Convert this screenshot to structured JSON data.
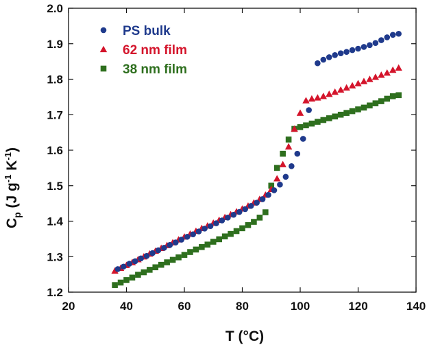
{
  "chart_data": {
    "type": "scatter",
    "xlabel": "T (°C)",
    "ylabel": {
      "main": "C",
      "sub": "p",
      "units_pre": " (J g",
      "exp1": "-1",
      "units_mid": " K",
      "exp2": "-1",
      "units_post": ")"
    },
    "xlim": [
      20,
      140
    ],
    "ylim": [
      1.2,
      2.0
    ],
    "xticks": [
      20,
      40,
      60,
      80,
      100,
      120,
      140
    ],
    "yticks": [
      1.2,
      1.3,
      1.4,
      1.5,
      1.6,
      1.7,
      1.8,
      1.9,
      2.0
    ],
    "ytick_labels": [
      "1.2",
      "1.3",
      "1.4",
      "1.5",
      "1.6",
      "1.7",
      "1.8",
      "1.9",
      "2.0"
    ],
    "grid": false,
    "legend": "top-left",
    "series": [
      {
        "name": "PS bulk",
        "marker": "circle",
        "color": "#1f3a8c",
        "x": [
          37,
          39,
          41,
          43,
          45,
          47,
          49,
          51,
          53,
          55,
          57,
          59,
          61,
          63,
          65,
          67,
          69,
          71,
          73,
          75,
          77,
          79,
          81,
          83,
          85,
          87,
          89,
          91,
          93,
          95,
          97,
          99,
          101,
          103,
          106,
          108,
          110,
          112,
          114,
          116,
          118,
          120,
          122,
          124,
          126,
          128,
          130,
          132,
          134
        ],
        "y": [
          1.265,
          1.272,
          1.28,
          1.287,
          1.295,
          1.302,
          1.31,
          1.318,
          1.325,
          1.333,
          1.34,
          1.348,
          1.356,
          1.363,
          1.371,
          1.379,
          1.386,
          1.394,
          1.402,
          1.41,
          1.418,
          1.426,
          1.434,
          1.443,
          1.452,
          1.462,
          1.474,
          1.487,
          1.503,
          1.525,
          1.555,
          1.59,
          1.632,
          1.713,
          1.845,
          1.855,
          1.862,
          1.868,
          1.873,
          1.877,
          1.882,
          1.886,
          1.891,
          1.896,
          1.902,
          1.91,
          1.918,
          1.925,
          1.928
        ]
      },
      {
        "name": "62 nm film",
        "marker": "triangle",
        "color": "#d4142b",
        "x": [
          36,
          38,
          40,
          42,
          44,
          46,
          48,
          50,
          52,
          54,
          56,
          58,
          60,
          62,
          64,
          66,
          68,
          70,
          72,
          74,
          76,
          78,
          80,
          82,
          84,
          86,
          88,
          90,
          92,
          94,
          96,
          98,
          100,
          102,
          104,
          106,
          108,
          110,
          112,
          114,
          116,
          118,
          120,
          122,
          124,
          126,
          128,
          130,
          132,
          134
        ],
        "y": [
          1.26,
          1.268,
          1.276,
          1.284,
          1.292,
          1.3,
          1.308,
          1.316,
          1.324,
          1.332,
          1.34,
          1.348,
          1.356,
          1.364,
          1.372,
          1.38,
          1.387,
          1.395,
          1.403,
          1.411,
          1.419,
          1.427,
          1.435,
          1.443,
          1.452,
          1.462,
          1.474,
          1.49,
          1.52,
          1.56,
          1.61,
          1.66,
          1.705,
          1.74,
          1.745,
          1.748,
          1.752,
          1.758,
          1.764,
          1.77,
          1.776,
          1.782,
          1.788,
          1.794,
          1.8,
          1.806,
          1.812,
          1.818,
          1.826,
          1.832
        ]
      },
      {
        "name": "38 nm film",
        "marker": "square",
        "color": "#2e6f1e",
        "x": [
          36,
          38,
          40,
          42,
          44,
          46,
          48,
          50,
          52,
          54,
          56,
          58,
          60,
          62,
          64,
          66,
          68,
          70,
          72,
          74,
          76,
          78,
          80,
          82,
          84,
          86,
          88,
          90,
          92,
          94,
          96,
          98,
          100,
          102,
          104,
          106,
          108,
          110,
          112,
          114,
          116,
          118,
          120,
          122,
          124,
          126,
          128,
          130,
          132,
          134
        ],
        "y": [
          1.22,
          1.227,
          1.234,
          1.241,
          1.249,
          1.256,
          1.263,
          1.27,
          1.277,
          1.284,
          1.291,
          1.298,
          1.305,
          1.313,
          1.32,
          1.327,
          1.334,
          1.342,
          1.349,
          1.357,
          1.364,
          1.372,
          1.38,
          1.389,
          1.398,
          1.41,
          1.425,
          1.5,
          1.55,
          1.59,
          1.63,
          1.66,
          1.665,
          1.67,
          1.675,
          1.68,
          1.685,
          1.69,
          1.695,
          1.7,
          1.705,
          1.71,
          1.715,
          1.72,
          1.726,
          1.732,
          1.738,
          1.745,
          1.752,
          1.755
        ]
      }
    ]
  }
}
